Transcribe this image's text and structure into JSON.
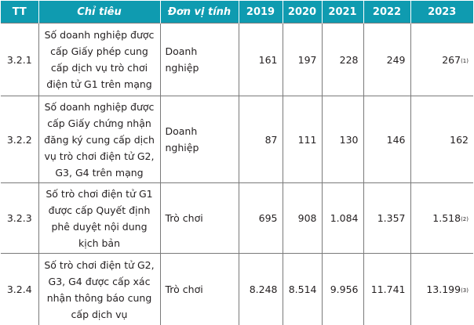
{
  "headers": {
    "tt": "TT",
    "indicator": "Chỉ tiêu",
    "unit": "Đơn vị tính",
    "y2019": "2019",
    "y2020": "2020",
    "y2021": "2021",
    "y2022": "2022",
    "y2023": "2023"
  },
  "rows": [
    {
      "tt": "3.2.1",
      "indicator": "Số doanh nghiệp được cấp Giấy phép cung cấp dịch vụ trò chơi điện tử G1 trên mạng",
      "unit": "Doanh nghiệp",
      "y2019": "161",
      "y2020": "197",
      "y2021": "228",
      "y2022": "249",
      "y2023": "267",
      "y2023_note": "(1)"
    },
    {
      "tt": "3.2.2",
      "indicator": "Số doanh nghiệp được cấp Giấy chứng nhận đăng ký cung cấp dịch vụ trò chơi điện tử G2, G3, G4 trên mạng",
      "unit": "Doanh nghiệp",
      "y2019": "87",
      "y2020": "111",
      "y2021": "130",
      "y2022": "146",
      "y2023": "162",
      "y2023_note": ""
    },
    {
      "tt": "3.2.3",
      "indicator": "Số trò chơi điện tử G1 được cấp Quyết định phê duyệt nội dung kịch bản",
      "unit": "Trò chơi",
      "y2019": "695",
      "y2020": "908",
      "y2021": "1.084",
      "y2022": "1.357",
      "y2023": "1.518",
      "y2023_note": "(2)"
    },
    {
      "tt": "3.2.4",
      "indicator": "Số trò chơi điện tử G2, G3, G4 được cấp xác nhận thông báo cung cấp dịch vụ",
      "unit": "Trò chơi",
      "y2019": "8.248",
      "y2020": "8.514",
      "y2021": "9.956",
      "y2022": "11.741",
      "y2023": "13.199",
      "y2023_note": "(3)"
    }
  ]
}
